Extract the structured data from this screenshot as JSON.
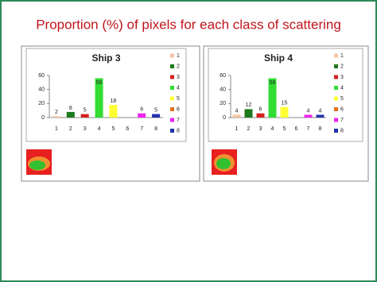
{
  "title": "Proportion (%) of  pixels for each class of  scattering",
  "chart_data": [
    {
      "type": "bar",
      "title": "Ship 3",
      "categories": [
        "1",
        "2",
        "3",
        "4",
        "5",
        "6",
        "7",
        "8"
      ],
      "values": [
        2,
        8,
        5,
        56,
        18,
        0,
        6,
        5
      ],
      "colors": [
        "#f6c4a4",
        "#1d7a1d",
        "#d42020",
        "#33dd33",
        "#ffff33",
        "#e07020",
        "#ee22ee",
        "#2233aa"
      ],
      "ylim": [
        0,
        60
      ],
      "yticks": [
        0,
        20,
        40,
        60
      ],
      "legend": "right"
    },
    {
      "type": "bar",
      "title": "Ship 4",
      "categories": [
        "1",
        "2",
        "3",
        "4",
        "5",
        "6",
        "7",
        "8"
      ],
      "values": [
        4,
        12,
        6,
        56,
        15,
        0,
        4,
        4
      ],
      "colors": [
        "#f6c4a4",
        "#1d7a1d",
        "#d42020",
        "#33dd33",
        "#ffff33",
        "#e07020",
        "#ee22ee",
        "#2233aa"
      ],
      "ylim": [
        0,
        60
      ],
      "yticks": [
        0,
        20,
        40,
        60
      ],
      "legend": "right"
    }
  ]
}
